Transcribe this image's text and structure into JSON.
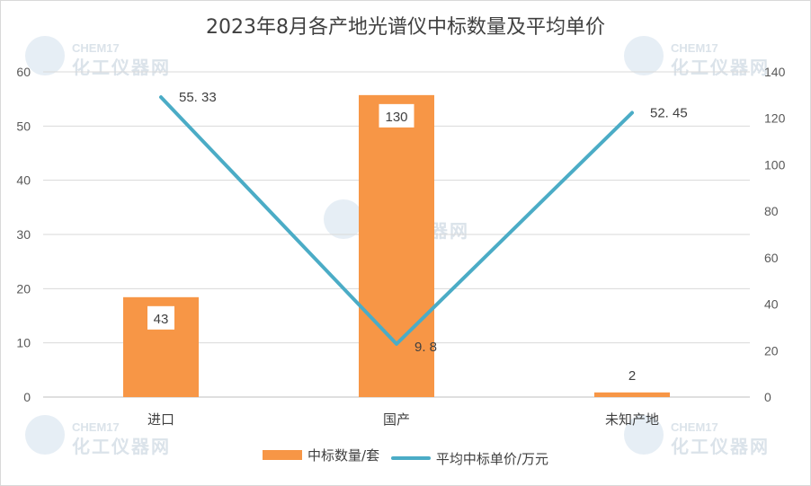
{
  "chart_data": {
    "type": "bar+line",
    "title": "2023年8月各产地光谱仪中标数量及平均单价",
    "categories": [
      "进口",
      "国产",
      "未知产地"
    ],
    "series": [
      {
        "name": "中标数量/套",
        "type": "bar",
        "axis": "right",
        "values": [
          43,
          130,
          2
        ],
        "color": "#F79646"
      },
      {
        "name": "平均中标单价/万元",
        "type": "line",
        "axis": "left",
        "values": [
          55.33,
          9.8,
          52.45
        ],
        "color": "#4BACC6"
      }
    ],
    "y_left": {
      "min": 0,
      "max": 60,
      "ticks": [
        0,
        10,
        20,
        30,
        40,
        50,
        60
      ]
    },
    "y_right": {
      "min": 0,
      "max": 140,
      "ticks": [
        0,
        20,
        40,
        60,
        80,
        100,
        120,
        140
      ]
    },
    "bar_labels": [
      "43",
      "130",
      "2"
    ],
    "line_labels": [
      "55. 33",
      "9. 8",
      "52. 45"
    ],
    "grid": true,
    "legend_position": "bottom"
  },
  "watermark": {
    "brand": "CHEM17",
    "name": "化工仪器网"
  }
}
